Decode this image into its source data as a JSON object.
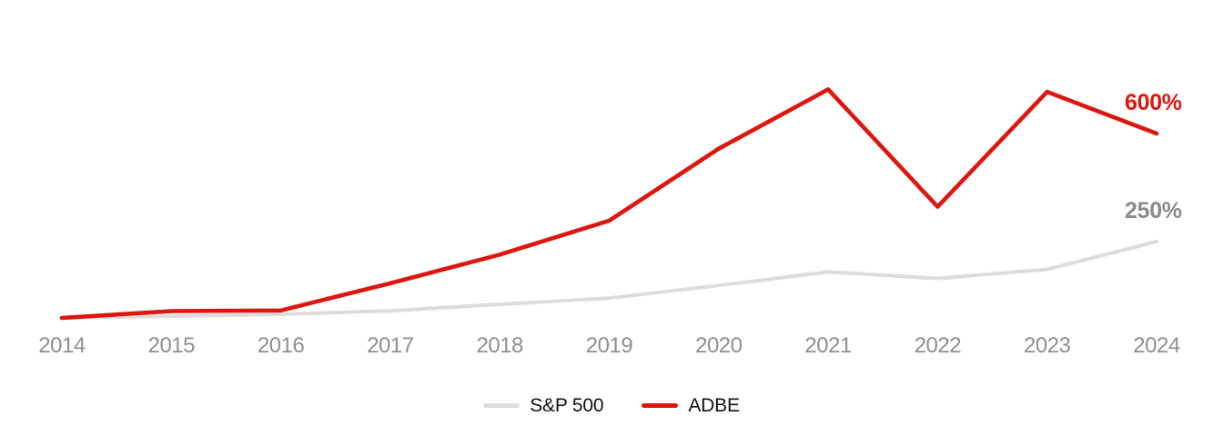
{
  "chart_data": {
    "type": "line",
    "title": "",
    "xlabel": "",
    "ylabel": "",
    "categories": [
      "2014",
      "2015",
      "2016",
      "2017",
      "2018",
      "2019",
      "2020",
      "2021",
      "2022",
      "2023",
      "2024"
    ],
    "series": [
      {
        "name": "S&P 500",
        "color_key": "sp500",
        "values": [
          0,
          6,
          12,
          23,
          44,
          64,
          105,
          149,
          128,
          157,
          247
        ]
      },
      {
        "name": "ADBE",
        "color_key": "adbe",
        "values": [
          0,
          22,
          24,
          112,
          205,
          315,
          548,
          740,
          360,
          732,
          597
        ]
      }
    ],
    "unit": "%",
    "end_labels": {
      "adbe": "600%",
      "sp500": "250%"
    },
    "ylim": [
      0,
      780
    ],
    "grid": false,
    "axis_lines": false,
    "legend_position": "bottom-center"
  },
  "colors": {
    "adbe_line": "#db1710",
    "sp500_line": "#dcdcdc",
    "adbe_end_label": "#e01510",
    "sp500_end_label": "#8a8a8a",
    "tick_label": "#8f8f8f",
    "legend_text": "#111111"
  }
}
